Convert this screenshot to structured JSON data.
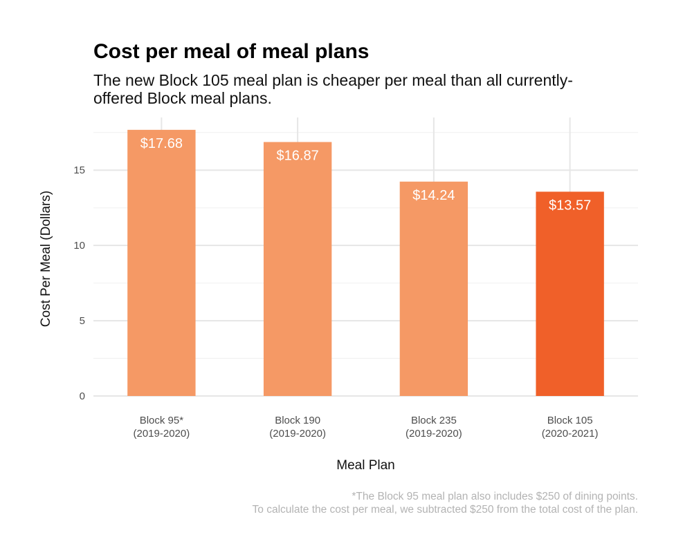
{
  "chart_data": {
    "type": "bar",
    "title": "Cost per meal of meal plans",
    "subtitle": "The new Block 105 meal plan is cheaper per meal than all currently-offered Block meal plans.",
    "xlabel": "Meal Plan",
    "ylabel": "Cost Per Meal (Dollars)",
    "categories": [
      [
        "Block 95*",
        "(2019-2020)"
      ],
      [
        "Block 190",
        "(2019-2020)"
      ],
      [
        "Block 235",
        "(2019-2020)"
      ],
      [
        "Block 105",
        "(2020-2021)"
      ]
    ],
    "values": [
      17.68,
      16.87,
      14.24,
      13.57
    ],
    "data_labels": [
      "$17.68",
      "$16.87",
      "$14.24",
      "$13.57"
    ],
    "bar_colors": [
      "#f59965",
      "#f59965",
      "#f59965",
      "#f06029"
    ],
    "ylim": [
      0,
      18.5
    ],
    "yticks": [
      0,
      5,
      10,
      15
    ],
    "grid": true,
    "legend": "none",
    "caption_lines": [
      "*The Block 95 meal plan also includes $250 of dining points.",
      "To calculate the cost per meal, we subtracted $250 from the total cost of the plan."
    ]
  }
}
